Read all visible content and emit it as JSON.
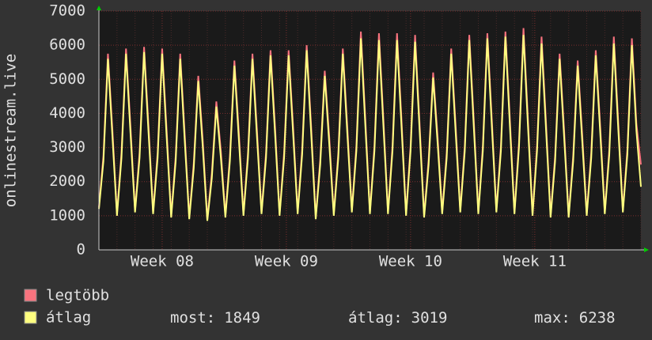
{
  "chart_data": {
    "type": "line",
    "y_label": "onlinestream.live",
    "categories": [
      null,
      null,
      null,
      null,
      null,
      null,
      null,
      null,
      null,
      null,
      null,
      null,
      null,
      null,
      null,
      null,
      null,
      null,
      null,
      null,
      null,
      null,
      null,
      null,
      null,
      null,
      null,
      null,
      null,
      null,
      null,
      null,
      null,
      null,
      null,
      null,
      null,
      null,
      null,
      null,
      null,
      null,
      null,
      null,
      null,
      null,
      null,
      null,
      null,
      null,
      null,
      null,
      null,
      null,
      null,
      null,
      null,
      null,
      null,
      null,
      null,
      null,
      null,
      null,
      null,
      null,
      null,
      null,
      null,
      null,
      null,
      null,
      null,
      null,
      null,
      null,
      null,
      null,
      null,
      null,
      null,
      null,
      null,
      null,
      null,
      null,
      null,
      null,
      null,
      null,
      null,
      null,
      null,
      null,
      null,
      null,
      null,
      null,
      null,
      null,
      null,
      null,
      null,
      null,
      null,
      null,
      null,
      null,
      null,
      null,
      null,
      null,
      null,
      null,
      null,
      null,
      null,
      null,
      null,
      null,
      null
    ],
    "xticks": [
      {
        "value": 14,
        "label": "Week 08"
      },
      {
        "value": 41.5,
        "label": "Week 09"
      },
      {
        "value": 69,
        "label": "Week 10"
      },
      {
        "value": 96.5,
        "label": "Week 11"
      }
    ],
    "ylim": [
      0,
      7000
    ],
    "yticks": [
      0,
      1000,
      2000,
      3000,
      4000,
      5000,
      6000,
      7000
    ],
    "grid": true,
    "series": [
      {
        "name": "legtöbb",
        "color": "#f8737e",
        "values": [
          1250,
          2750,
          5750,
          3500,
          1050,
          2850,
          5900,
          3600,
          1150,
          2850,
          5950,
          3600,
          1100,
          2850,
          5900,
          3500,
          1000,
          2750,
          5750,
          3400,
          950,
          2550,
          5100,
          3200,
          900,
          2250,
          4350,
          2900,
          1000,
          2750,
          5550,
          3400,
          1050,
          2850,
          5750,
          3500,
          1100,
          2850,
          5850,
          3600,
          1050,
          2850,
          5850,
          3600,
          1100,
          2950,
          6000,
          3600,
          950,
          2650,
          5250,
          3300,
          1050,
          2850,
          5900,
          3600,
          1150,
          3050,
          6400,
          3800,
          1100,
          3050,
          6350,
          3800,
          1100,
          3050,
          6350,
          3800,
          1050,
          3050,
          6300,
          3700,
          1000,
          2650,
          5200,
          3300,
          1100,
          2850,
          5900,
          3600,
          1150,
          3050,
          6300,
          3800,
          1100,
          3050,
          6350,
          3800,
          1150,
          3050,
          6400,
          3800,
          1100,
          3150,
          6500,
          3800,
          1050,
          3050,
          6250,
          3700,
          1000,
          2750,
          5750,
          3500,
          1000,
          2750,
          5550,
          3400,
          1050,
          2850,
          5850,
          3600,
          1100,
          2950,
          6250,
          3700,
          1150,
          2950,
          6200,
          3700,
          2500
        ]
      },
      {
        "name": "átlag",
        "color": "#ffff80",
        "values": [
          1200,
          2600,
          5600,
          3300,
          1000,
          2700,
          5750,
          3400,
          1100,
          2700,
          5800,
          3400,
          1050,
          2700,
          5750,
          3300,
          950,
          2600,
          5600,
          3200,
          900,
          2400,
          4950,
          3000,
          850,
          2100,
          4200,
          2700,
          950,
          2600,
          5400,
          3200,
          1000,
          2700,
          5600,
          3300,
          1050,
          2700,
          5700,
          3400,
          1000,
          2700,
          5700,
          3400,
          1050,
          2800,
          5850,
          3400,
          900,
          2500,
          5100,
          3100,
          1000,
          2700,
          5750,
          3400,
          1100,
          2900,
          6200,
          3600,
          1050,
          2900,
          6150,
          3600,
          1050,
          2900,
          6150,
          3600,
          1000,
          2900,
          6100,
          3500,
          950,
          2500,
          5050,
          3100,
          1050,
          2700,
          5750,
          3400,
          1100,
          2900,
          6150,
          3600,
          1050,
          2900,
          6200,
          3600,
          1100,
          2900,
          6250,
          3600,
          1050,
          3000,
          6300,
          3600,
          1000,
          2900,
          6050,
          3500,
          950,
          2600,
          5600,
          3300,
          950,
          2600,
          5400,
          3200,
          1000,
          2700,
          5700,
          3400,
          1050,
          2800,
          6050,
          3500,
          1100,
          2800,
          6000,
          3500,
          1849
        ]
      }
    ],
    "stats": [
      {
        "label": "most:",
        "value": 1849
      },
      {
        "label": "átlag:",
        "value": 3019
      },
      {
        "label": "max:",
        "value": 6238
      }
    ]
  }
}
